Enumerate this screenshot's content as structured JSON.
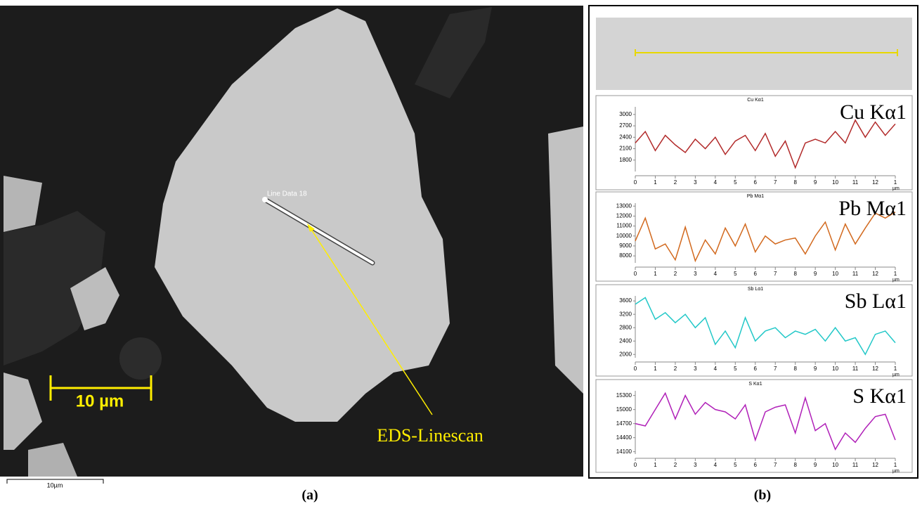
{
  "panel_a": {
    "line_label": "Line Data 18",
    "scale_label": "10 µm",
    "arrow_label": "EDS-Linescan",
    "bottom_scale_label": "10µm",
    "caption": "(a)"
  },
  "panel_b": {
    "caption": "(b)"
  },
  "chart_data": [
    {
      "type": "line",
      "title": "Cu Kα1",
      "annotation": "Cu Kα1",
      "x_unit": "µm",
      "x": [
        0,
        0.5,
        1,
        1.5,
        2,
        2.5,
        3,
        3.5,
        4,
        4.5,
        5,
        5.5,
        6,
        6.5,
        7,
        7.5,
        8,
        8.5,
        9,
        9.5,
        10,
        10.5,
        11,
        11.5,
        12,
        12.5,
        13
      ],
      "series": [
        {
          "name": "Cu Kα1",
          "color": "#b22a2a",
          "values": [
            2250,
            2550,
            2050,
            2450,
            2200,
            2000,
            2350,
            2100,
            2400,
            1950,
            2300,
            2450,
            2050,
            2500,
            1900,
            2300,
            1600,
            2250,
            2350,
            2250,
            2550,
            2250,
            2850,
            2400,
            2800,
            2450,
            2750
          ]
        }
      ],
      "xlim": [
        0,
        13
      ],
      "xticks": [
        0,
        1,
        2,
        3,
        4,
        5,
        6,
        7,
        8,
        9,
        10,
        11,
        12,
        {
          "value": 13,
          "label": "1"
        }
      ],
      "ylim": [
        1500,
        3200
      ],
      "yticks": [
        1800,
        2100,
        2400,
        2700,
        3000
      ]
    },
    {
      "type": "line",
      "title": "Pb Mα1",
      "annotation": "Pb Mα1",
      "x_unit": "µm",
      "x": [
        0,
        0.5,
        1,
        1.5,
        2,
        2.5,
        3,
        3.5,
        4,
        4.5,
        5,
        5.5,
        6,
        6.5,
        7,
        7.5,
        8,
        8.5,
        9,
        9.5,
        10,
        10.5,
        11,
        11.5,
        12,
        12.5,
        13
      ],
      "series": [
        {
          "name": "Pb Mα1",
          "color": "#d2691e",
          "values": [
            9500,
            11800,
            8700,
            9200,
            7600,
            10900,
            7500,
            9600,
            8200,
            10800,
            9000,
            11200,
            8400,
            10000,
            9200,
            9600,
            9800,
            8200,
            10000,
            11400,
            8600,
            11200,
            9200,
            10800,
            12300,
            11800,
            12400
          ]
        }
      ],
      "xlim": [
        0,
        13
      ],
      "xticks": [
        0,
        1,
        2,
        3,
        4,
        5,
        6,
        7,
        8,
        9,
        10,
        11,
        12,
        {
          "value": 13,
          "label": "1"
        }
      ],
      "ylim": [
        7300,
        13300
      ],
      "yticks": [
        8000,
        9000,
        10000,
        11000,
        12000,
        13000
      ]
    },
    {
      "type": "line",
      "title": "Sb Lα1",
      "annotation": "Sb Lα1",
      "x_unit": "µm",
      "x": [
        0,
        0.5,
        1,
        1.5,
        2,
        2.5,
        3,
        3.5,
        4,
        4.5,
        5,
        5.5,
        6,
        6.5,
        7,
        7.5,
        8,
        8.5,
        9,
        9.5,
        10,
        10.5,
        11,
        11.5,
        12,
        12.5,
        13
      ],
      "series": [
        {
          "name": "Sb Lα1",
          "color": "#22c8c8",
          "values": [
            3500,
            3700,
            3050,
            3250,
            2950,
            3200,
            2800,
            3100,
            2300,
            2700,
            2200,
            3100,
            2400,
            2700,
            2800,
            2500,
            2700,
            2600,
            2750,
            2400,
            2800,
            2400,
            2500,
            2000,
            2600,
            2700,
            2350
          ]
        }
      ],
      "xlim": [
        0,
        13
      ],
      "xticks": [
        0,
        1,
        2,
        3,
        4,
        5,
        6,
        7,
        8,
        9,
        10,
        11,
        12,
        {
          "value": 13,
          "label": "1"
        }
      ],
      "ylim": [
        1900,
        3750
      ],
      "yticks": [
        2000,
        2400,
        2800,
        3200,
        3600
      ]
    },
    {
      "type": "line",
      "title": "S Kα1",
      "annotation": "S Kα1",
      "x_unit": "µm",
      "x": [
        0,
        0.5,
        1,
        1.5,
        2,
        2.5,
        3,
        3.5,
        4,
        4.5,
        5,
        5.5,
        6,
        6.5,
        7,
        7.5,
        8,
        8.5,
        9,
        9.5,
        10,
        10.5,
        11,
        11.5,
        12,
        12.5,
        13
      ],
      "series": [
        {
          "name": "S Kα1",
          "color": "#b020b8",
          "values": [
            14700,
            14650,
            15000,
            15350,
            14800,
            15300,
            14900,
            15150,
            15000,
            14950,
            14800,
            15100,
            14350,
            14950,
            15050,
            15100,
            14500,
            15250,
            14550,
            14700,
            14150,
            14500,
            14300,
            14600,
            14850,
            14900,
            14350
          ]
        }
      ],
      "xlim": [
        0,
        13
      ],
      "xticks": [
        0,
        1,
        2,
        3,
        4,
        5,
        6,
        7,
        8,
        9,
        10,
        11,
        12,
        {
          "value": 13,
          "label": "1"
        }
      ],
      "ylim": [
        14050,
        15400
      ],
      "yticks": [
        14100,
        14400,
        14700,
        15000,
        15300
      ]
    }
  ]
}
